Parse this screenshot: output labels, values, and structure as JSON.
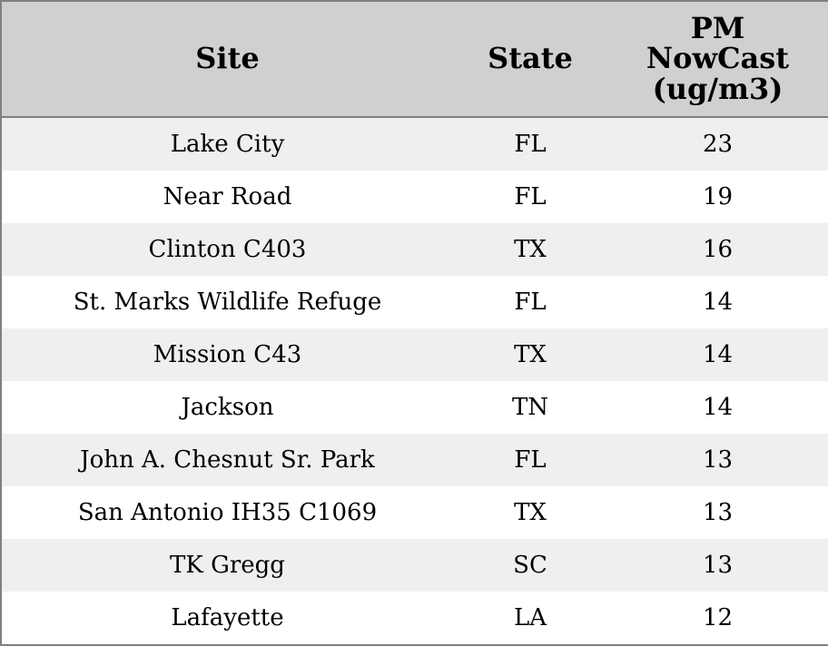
{
  "table": {
    "columns": [
      "Site",
      "State",
      "PM NowCast (ug/m3)"
    ],
    "rows": [
      [
        "Lake City",
        "FL",
        23
      ],
      [
        "Near Road",
        "FL",
        19
      ],
      [
        "Clinton C403",
        "TX",
        16
      ],
      [
        "St. Marks Wildlife Refuge",
        "FL",
        14
      ],
      [
        "Mission C43",
        "TX",
        14
      ],
      [
        "Jackson",
        "TN",
        14
      ],
      [
        "John A. Chesnut Sr. Park",
        "FL",
        13
      ],
      [
        "San Antonio IH35 C1069",
        "TX",
        13
      ],
      [
        "TK Gregg",
        "SC",
        13
      ],
      [
        "Lafayette",
        "LA",
        12
      ]
    ]
  }
}
